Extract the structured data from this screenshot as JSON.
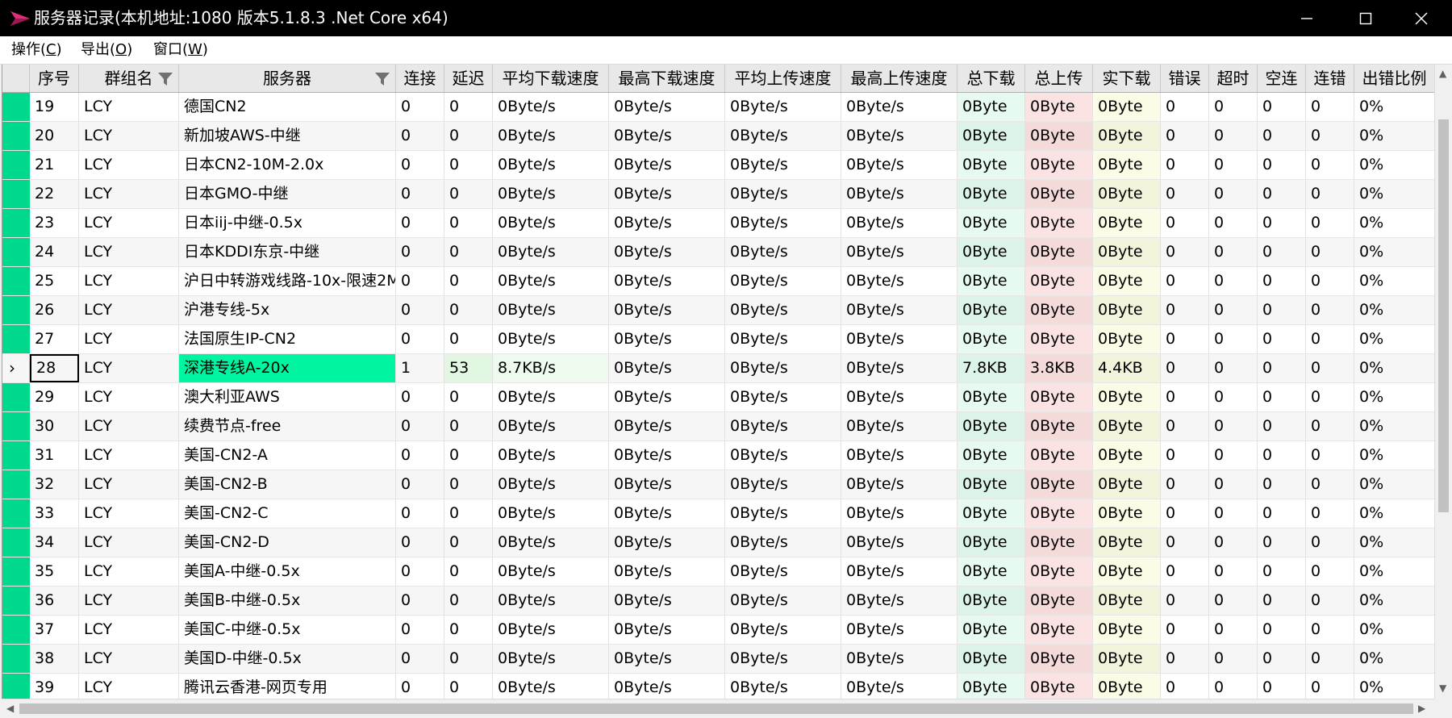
{
  "window": {
    "title": "服务器记录(本机地址:1080 版本5.1.8.3 .Net Core x64)",
    "controls": [
      "minimize",
      "maximize",
      "close"
    ]
  },
  "menu": [
    {
      "label": "操作(",
      "hotkey": "C",
      "close": ")"
    },
    {
      "label": "导出(",
      "hotkey": "O",
      "close": ")"
    },
    {
      "label": "窗口(",
      "hotkey": "W",
      "close": ")"
    }
  ],
  "columns": [
    "序号",
    "群组名",
    "服务器",
    "连接",
    "延迟",
    "平均下载速度",
    "最高下载速度",
    "平均上传速度",
    "最高上传速度",
    "总下载",
    "总上传",
    "实下载",
    "错误",
    "超时",
    "空连",
    "连错",
    "出错比例"
  ],
  "selected_row": "28",
  "rows": [
    [
      "19",
      "LCY",
      "德国CN2",
      "0",
      "0",
      "0Byte/s",
      "0Byte/s",
      "0Byte/s",
      "0Byte/s",
      "0Byte",
      "0Byte",
      "0Byte",
      "0",
      "0",
      "0",
      "0",
      "0%"
    ],
    [
      "20",
      "LCY",
      "新加坡AWS-中继",
      "0",
      "0",
      "0Byte/s",
      "0Byte/s",
      "0Byte/s",
      "0Byte/s",
      "0Byte",
      "0Byte",
      "0Byte",
      "0",
      "0",
      "0",
      "0",
      "0%"
    ],
    [
      "21",
      "LCY",
      "日本CN2-10M-2.0x",
      "0",
      "0",
      "0Byte/s",
      "0Byte/s",
      "0Byte/s",
      "0Byte/s",
      "0Byte",
      "0Byte",
      "0Byte",
      "0",
      "0",
      "0",
      "0",
      "0%"
    ],
    [
      "22",
      "LCY",
      "日本GMO-中继",
      "0",
      "0",
      "0Byte/s",
      "0Byte/s",
      "0Byte/s",
      "0Byte/s",
      "0Byte",
      "0Byte",
      "0Byte",
      "0",
      "0",
      "0",
      "0",
      "0%"
    ],
    [
      "23",
      "LCY",
      "日本iij-中继-0.5x",
      "0",
      "0",
      "0Byte/s",
      "0Byte/s",
      "0Byte/s",
      "0Byte/s",
      "0Byte",
      "0Byte",
      "0Byte",
      "0",
      "0",
      "0",
      "0",
      "0%"
    ],
    [
      "24",
      "LCY",
      "日本KDDI东京-中继",
      "0",
      "0",
      "0Byte/s",
      "0Byte/s",
      "0Byte/s",
      "0Byte/s",
      "0Byte",
      "0Byte",
      "0Byte",
      "0",
      "0",
      "0",
      "0",
      "0%"
    ],
    [
      "25",
      "LCY",
      "沪日中转游戏线路-10x-限速2M",
      "0",
      "0",
      "0Byte/s",
      "0Byte/s",
      "0Byte/s",
      "0Byte/s",
      "0Byte",
      "0Byte",
      "0Byte",
      "0",
      "0",
      "0",
      "0",
      "0%"
    ],
    [
      "26",
      "LCY",
      "沪港专线-5x",
      "0",
      "0",
      "0Byte/s",
      "0Byte/s",
      "0Byte/s",
      "0Byte/s",
      "0Byte",
      "0Byte",
      "0Byte",
      "0",
      "0",
      "0",
      "0",
      "0%"
    ],
    [
      "27",
      "LCY",
      "法国原生IP-CN2",
      "0",
      "0",
      "0Byte/s",
      "0Byte/s",
      "0Byte/s",
      "0Byte/s",
      "0Byte",
      "0Byte",
      "0Byte",
      "0",
      "0",
      "0",
      "0",
      "0%"
    ],
    [
      "28",
      "LCY",
      "深港专线A-20x",
      "1",
      "53",
      "8.7KB/s",
      "0Byte/s",
      "0Byte/s",
      "0Byte/s",
      "7.8KB",
      "3.8KB",
      "4.4KB",
      "0",
      "0",
      "0",
      "0",
      "0%"
    ],
    [
      "29",
      "LCY",
      "澳大利亚AWS",
      "0",
      "0",
      "0Byte/s",
      "0Byte/s",
      "0Byte/s",
      "0Byte/s",
      "0Byte",
      "0Byte",
      "0Byte",
      "0",
      "0",
      "0",
      "0",
      "0%"
    ],
    [
      "30",
      "LCY",
      "续费节点-free",
      "0",
      "0",
      "0Byte/s",
      "0Byte/s",
      "0Byte/s",
      "0Byte/s",
      "0Byte",
      "0Byte",
      "0Byte",
      "0",
      "0",
      "0",
      "0",
      "0%"
    ],
    [
      "31",
      "LCY",
      "美国-CN2-A",
      "0",
      "0",
      "0Byte/s",
      "0Byte/s",
      "0Byte/s",
      "0Byte/s",
      "0Byte",
      "0Byte",
      "0Byte",
      "0",
      "0",
      "0",
      "0",
      "0%"
    ],
    [
      "32",
      "LCY",
      "美国-CN2-B",
      "0",
      "0",
      "0Byte/s",
      "0Byte/s",
      "0Byte/s",
      "0Byte/s",
      "0Byte",
      "0Byte",
      "0Byte",
      "0",
      "0",
      "0",
      "0",
      "0%"
    ],
    [
      "33",
      "LCY",
      "美国-CN2-C",
      "0",
      "0",
      "0Byte/s",
      "0Byte/s",
      "0Byte/s",
      "0Byte/s",
      "0Byte",
      "0Byte",
      "0Byte",
      "0",
      "0",
      "0",
      "0",
      "0%"
    ],
    [
      "34",
      "LCY",
      "美国-CN2-D",
      "0",
      "0",
      "0Byte/s",
      "0Byte/s",
      "0Byte/s",
      "0Byte/s",
      "0Byte",
      "0Byte",
      "0Byte",
      "0",
      "0",
      "0",
      "0",
      "0%"
    ],
    [
      "35",
      "LCY",
      "美国A-中继-0.5x",
      "0",
      "0",
      "0Byte/s",
      "0Byte/s",
      "0Byte/s",
      "0Byte/s",
      "0Byte",
      "0Byte",
      "0Byte",
      "0",
      "0",
      "0",
      "0",
      "0%"
    ],
    [
      "36",
      "LCY",
      "美国B-中继-0.5x",
      "0",
      "0",
      "0Byte/s",
      "0Byte/s",
      "0Byte/s",
      "0Byte/s",
      "0Byte",
      "0Byte",
      "0Byte",
      "0",
      "0",
      "0",
      "0",
      "0%"
    ],
    [
      "37",
      "LCY",
      "美国C-中继-0.5x",
      "0",
      "0",
      "0Byte/s",
      "0Byte/s",
      "0Byte/s",
      "0Byte/s",
      "0Byte",
      "0Byte",
      "0Byte",
      "0",
      "0",
      "0",
      "0",
      "0%"
    ],
    [
      "38",
      "LCY",
      "美国D-中继-0.5x",
      "0",
      "0",
      "0Byte/s",
      "0Byte/s",
      "0Byte/s",
      "0Byte/s",
      "0Byte",
      "0Byte",
      "0Byte",
      "0",
      "0",
      "0",
      "0",
      "0%"
    ],
    [
      "39",
      "LCY",
      "腾讯云香港-网页专用",
      "0",
      "0",
      "0Byte/s",
      "0Byte/s",
      "0Byte/s",
      "0Byte/s",
      "0Byte",
      "0Byte",
      "0Byte",
      "0",
      "0",
      "0",
      "0",
      "0%"
    ]
  ],
  "colors": {
    "row_indicator": "#00d98b",
    "selected_server_bg": "#00f5a0",
    "total_download_bg": "#e6faf0",
    "total_upload_bg": "#fbe3e3",
    "real_download_bg": "#fbfbe6"
  }
}
